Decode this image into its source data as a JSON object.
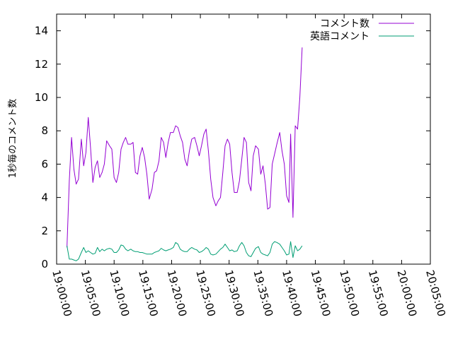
{
  "chart_data": {
    "type": "line",
    "ylabel": "1秒毎のコメント数",
    "xlabel": "",
    "ylim": [
      0,
      15
    ],
    "yticks": [
      0,
      2,
      4,
      6,
      8,
      10,
      12,
      14
    ],
    "xticks": [
      "19:00:00",
      "19:05:00",
      "19:10:00",
      "19:15:00",
      "19:20:00",
      "19:25:00",
      "19:30:00",
      "19:35:00",
      "19:40:00",
      "19:45:00",
      "19:50:00",
      "19:55:00",
      "20:00:00",
      "20:05:00"
    ],
    "xlim_minutes": [
      0,
      65
    ],
    "grid": false,
    "legend_position": "top-right",
    "series": [
      {
        "name": "コメント数",
        "color": "#9400d3",
        "points": [
          [
            1.8,
            1.0
          ],
          [
            2.2,
            5.0
          ],
          [
            2.6,
            7.6
          ],
          [
            3.0,
            5.7
          ],
          [
            3.4,
            4.8
          ],
          [
            3.8,
            5.1
          ],
          [
            4.3,
            7.5
          ],
          [
            4.7,
            5.9
          ],
          [
            5.1,
            6.7
          ],
          [
            5.5,
            8.8
          ],
          [
            5.9,
            7.0
          ],
          [
            6.3,
            4.9
          ],
          [
            6.7,
            5.8
          ],
          [
            7.1,
            6.2
          ],
          [
            7.5,
            5.2
          ],
          [
            7.9,
            5.5
          ],
          [
            8.3,
            6.0
          ],
          [
            8.7,
            7.4
          ],
          [
            9.2,
            7.1
          ],
          [
            9.6,
            6.9
          ],
          [
            10.0,
            5.2
          ],
          [
            10.4,
            4.9
          ],
          [
            10.8,
            5.5
          ],
          [
            11.2,
            6.9
          ],
          [
            11.6,
            7.3
          ],
          [
            12.0,
            7.6
          ],
          [
            12.4,
            7.2
          ],
          [
            12.9,
            7.2
          ],
          [
            13.3,
            7.3
          ],
          [
            13.7,
            5.5
          ],
          [
            14.1,
            5.4
          ],
          [
            14.5,
            6.5
          ],
          [
            14.9,
            7.0
          ],
          [
            15.3,
            6.4
          ],
          [
            15.7,
            5.4
          ],
          [
            16.1,
            3.9
          ],
          [
            16.6,
            4.5
          ],
          [
            17.0,
            5.5
          ],
          [
            17.4,
            5.6
          ],
          [
            17.8,
            6.2
          ],
          [
            18.2,
            7.6
          ],
          [
            18.6,
            7.3
          ],
          [
            19.0,
            6.4
          ],
          [
            19.4,
            7.3
          ],
          [
            19.8,
            7.9
          ],
          [
            20.3,
            7.9
          ],
          [
            20.7,
            8.3
          ],
          [
            21.1,
            8.2
          ],
          [
            21.5,
            7.7
          ],
          [
            21.9,
            7.3
          ],
          [
            22.3,
            6.3
          ],
          [
            22.7,
            5.9
          ],
          [
            23.1,
            6.8
          ],
          [
            23.5,
            7.5
          ],
          [
            24.0,
            7.6
          ],
          [
            24.4,
            7.1
          ],
          [
            24.8,
            6.5
          ],
          [
            25.2,
            7.1
          ],
          [
            25.6,
            7.8
          ],
          [
            26.0,
            8.1
          ],
          [
            26.4,
            6.8
          ],
          [
            26.8,
            5.1
          ],
          [
            27.2,
            4.0
          ],
          [
            27.7,
            3.5
          ],
          [
            28.1,
            3.8
          ],
          [
            28.5,
            4.0
          ],
          [
            28.9,
            5.5
          ],
          [
            29.3,
            7.1
          ],
          [
            29.7,
            7.5
          ],
          [
            30.1,
            7.2
          ],
          [
            30.5,
            5.5
          ],
          [
            30.9,
            4.3
          ],
          [
            31.4,
            4.3
          ],
          [
            31.8,
            5.0
          ],
          [
            32.2,
            6.3
          ],
          [
            32.6,
            7.6
          ],
          [
            33.0,
            7.3
          ],
          [
            33.4,
            4.9
          ],
          [
            33.8,
            4.4
          ],
          [
            34.2,
            6.5
          ],
          [
            34.6,
            7.1
          ],
          [
            35.1,
            6.9
          ],
          [
            35.5,
            5.4
          ],
          [
            35.9,
            5.9
          ],
          [
            36.3,
            4.8
          ],
          [
            36.7,
            3.3
          ],
          [
            37.1,
            3.4
          ],
          [
            37.5,
            6.0
          ],
          [
            37.9,
            6.6
          ],
          [
            38.3,
            7.2
          ],
          [
            38.8,
            7.9
          ],
          [
            39.2,
            6.8
          ],
          [
            39.6,
            6.0
          ],
          [
            40.0,
            4.1
          ],
          [
            40.4,
            3.7
          ],
          [
            40.7,
            7.8
          ],
          [
            41.1,
            2.8
          ],
          [
            41.5,
            8.3
          ],
          [
            41.9,
            8.1
          ],
          [
            42.3,
            10.0
          ],
          [
            42.7,
            13.0
          ]
        ]
      },
      {
        "name": "英語コメント",
        "color": "#009e73",
        "points": [
          [
            1.8,
            1.1
          ],
          [
            2.2,
            0.3
          ],
          [
            2.6,
            0.3
          ],
          [
            3.0,
            0.25
          ],
          [
            3.4,
            0.2
          ],
          [
            3.8,
            0.3
          ],
          [
            4.3,
            0.7
          ],
          [
            4.7,
            1.0
          ],
          [
            5.1,
            0.7
          ],
          [
            5.5,
            0.8
          ],
          [
            5.9,
            0.7
          ],
          [
            6.3,
            0.6
          ],
          [
            6.7,
            0.65
          ],
          [
            7.1,
            1.0
          ],
          [
            7.5,
            0.75
          ],
          [
            7.9,
            0.9
          ],
          [
            8.3,
            0.8
          ],
          [
            8.7,
            0.9
          ],
          [
            9.2,
            0.95
          ],
          [
            9.6,
            0.9
          ],
          [
            10.0,
            0.7
          ],
          [
            10.4,
            0.7
          ],
          [
            10.8,
            0.85
          ],
          [
            11.2,
            1.15
          ],
          [
            11.6,
            1.1
          ],
          [
            12.0,
            0.9
          ],
          [
            12.4,
            0.8
          ],
          [
            12.9,
            0.9
          ],
          [
            13.3,
            0.8
          ],
          [
            13.7,
            0.75
          ],
          [
            14.1,
            0.75
          ],
          [
            14.5,
            0.7
          ],
          [
            14.9,
            0.7
          ],
          [
            15.3,
            0.65
          ],
          [
            15.7,
            0.6
          ],
          [
            16.1,
            0.6
          ],
          [
            16.6,
            0.6
          ],
          [
            17.0,
            0.7
          ],
          [
            17.4,
            0.75
          ],
          [
            17.8,
            0.8
          ],
          [
            18.2,
            0.95
          ],
          [
            18.6,
            0.85
          ],
          [
            19.0,
            0.8
          ],
          [
            19.4,
            0.85
          ],
          [
            19.8,
            0.9
          ],
          [
            20.3,
            1.0
          ],
          [
            20.7,
            1.3
          ],
          [
            21.1,
            1.2
          ],
          [
            21.5,
            0.9
          ],
          [
            21.9,
            0.8
          ],
          [
            22.3,
            0.75
          ],
          [
            22.7,
            0.75
          ],
          [
            23.1,
            0.9
          ],
          [
            23.5,
            1.0
          ],
          [
            24.0,
            0.9
          ],
          [
            24.4,
            0.85
          ],
          [
            24.8,
            0.7
          ],
          [
            25.2,
            0.75
          ],
          [
            25.6,
            0.85
          ],
          [
            26.0,
            1.0
          ],
          [
            26.4,
            0.9
          ],
          [
            26.8,
            0.6
          ],
          [
            27.2,
            0.55
          ],
          [
            27.7,
            0.6
          ],
          [
            28.1,
            0.75
          ],
          [
            28.5,
            0.9
          ],
          [
            28.9,
            1.0
          ],
          [
            29.3,
            1.2
          ],
          [
            29.7,
            1.0
          ],
          [
            30.1,
            0.8
          ],
          [
            30.5,
            0.85
          ],
          [
            30.9,
            0.75
          ],
          [
            31.4,
            0.8
          ],
          [
            31.8,
            1.1
          ],
          [
            32.2,
            1.3
          ],
          [
            32.6,
            1.1
          ],
          [
            33.0,
            0.7
          ],
          [
            33.4,
            0.5
          ],
          [
            33.8,
            0.45
          ],
          [
            34.2,
            0.7
          ],
          [
            34.6,
            0.95
          ],
          [
            35.1,
            1.05
          ],
          [
            35.5,
            0.7
          ],
          [
            35.9,
            0.6
          ],
          [
            36.3,
            0.55
          ],
          [
            36.7,
            0.5
          ],
          [
            37.1,
            0.7
          ],
          [
            37.5,
            1.2
          ],
          [
            37.9,
            1.35
          ],
          [
            38.3,
            1.3
          ],
          [
            38.8,
            1.2
          ],
          [
            39.2,
            1.0
          ],
          [
            39.6,
            0.8
          ],
          [
            40.0,
            0.55
          ],
          [
            40.4,
            0.6
          ],
          [
            40.7,
            1.35
          ],
          [
            41.1,
            0.4
          ],
          [
            41.5,
            1.1
          ],
          [
            41.9,
            0.8
          ],
          [
            42.3,
            0.9
          ],
          [
            42.7,
            1.1
          ]
        ]
      }
    ]
  }
}
